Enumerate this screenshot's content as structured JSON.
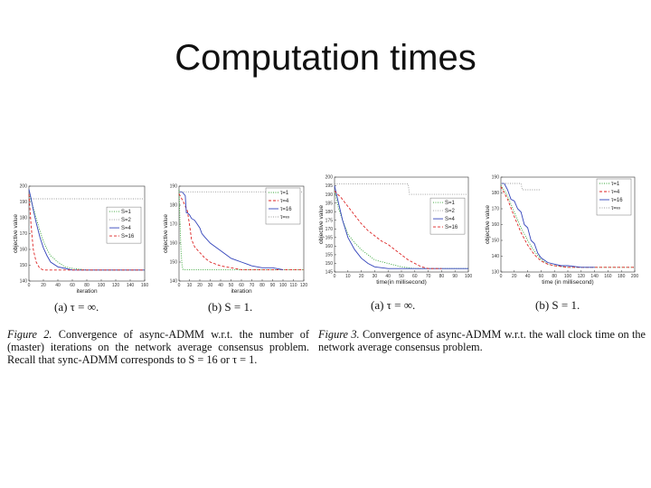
{
  "slide": {
    "title": "Computation times"
  },
  "captions": {
    "fig2": {
      "label": "Figure 2.",
      "text": "Convergence of async-ADMM w.r.t. the number of (master) iterations on the network average consensus problem. Recall that sync-ADMM corresponds to S = 16 or τ = 1."
    },
    "fig3": {
      "label": "Figure 3.",
      "text": "Convergence of async-ADMM w.r.t. the wall clock time on the network average consensus problem."
    }
  },
  "sublabels": [
    "(a) τ = ∞.",
    "(b) S = 1.",
    "(a) τ = ∞.",
    "(b) S = 1."
  ],
  "chart_data": [
    {
      "type": "line",
      "xlabel": "iteration",
      "ylabel": "objective value",
      "xlim": [
        0,
        160
      ],
      "ylim": [
        140,
        200
      ],
      "xticks": [
        0,
        20,
        40,
        60,
        80,
        100,
        120,
        140,
        160
      ],
      "yticks": [
        140,
        150,
        160,
        170,
        180,
        190,
        200
      ],
      "legend": "right",
      "grid": false,
      "series": [
        {
          "name": "S=1",
          "color": "#2ca02c",
          "style": "dotted",
          "x": [
            0,
            5,
            10,
            15,
            20,
            25,
            30,
            40,
            50,
            60,
            80,
            160
          ],
          "y": [
            195,
            188,
            180,
            172,
            165,
            160,
            156,
            152,
            149,
            148,
            147,
            147
          ]
        },
        {
          "name": "S=2",
          "color": "#999999",
          "style": "dotted",
          "x": [
            0,
            160
          ],
          "y": [
            192,
            192
          ]
        },
        {
          "name": "S=4",
          "color": "#3344bb",
          "style": "solid",
          "x": [
            0,
            3,
            6,
            10,
            15,
            20,
            25,
            30,
            40,
            50,
            60,
            80,
            160
          ],
          "y": [
            198,
            192,
            185,
            177,
            168,
            161,
            156,
            152,
            149,
            148,
            147,
            147,
            147
          ]
        },
        {
          "name": "S=16",
          "color": "#dd2222",
          "style": "dashed",
          "x": [
            0,
            3,
            6,
            10,
            15,
            20,
            30,
            160
          ],
          "y": [
            195,
            175,
            160,
            152,
            148,
            147,
            147,
            147
          ]
        }
      ]
    },
    {
      "type": "line",
      "xlabel": "iteration",
      "ylabel": "objective value",
      "xlim": [
        0,
        120
      ],
      "ylim": [
        140,
        190
      ],
      "xticks": [
        0,
        10,
        20,
        30,
        40,
        50,
        60,
        70,
        80,
        90,
        100,
        110,
        120
      ],
      "yticks": [
        140,
        150,
        160,
        170,
        180,
        190
      ],
      "legend": "top-right",
      "grid": false,
      "series": [
        {
          "name": "τ=1",
          "color": "#2ca02c",
          "style": "dotted",
          "x": [
            0,
            1,
            2,
            3,
            4,
            6,
            120
          ],
          "y": [
            188,
            170,
            155,
            148,
            146,
            146,
            146
          ]
        },
        {
          "name": "τ=4",
          "color": "#dd2222",
          "style": "dashed",
          "x": [
            0,
            4,
            8,
            10,
            12,
            15,
            20,
            25,
            30,
            40,
            50,
            60,
            120
          ],
          "y": [
            186,
            182,
            177,
            170,
            162,
            158,
            155,
            152,
            150,
            148,
            147,
            146,
            146
          ]
        },
        {
          "name": "τ=16",
          "color": "#3344bb",
          "style": "solid",
          "x": [
            0,
            3,
            6,
            7,
            8,
            10,
            12,
            15,
            20,
            22,
            25,
            30,
            35,
            40,
            45,
            50,
            55,
            60,
            65,
            70,
            80,
            90,
            100
          ],
          "y": [
            187,
            187,
            185,
            176,
            176,
            175,
            173,
            172,
            168,
            165,
            163,
            160,
            158,
            156,
            154,
            152,
            151,
            150,
            149,
            148,
            147,
            147,
            146
          ]
        },
        {
          "name": "τ=∞",
          "color": "#999999",
          "style": "dotted",
          "x": [
            0,
            120
          ],
          "y": [
            187,
            187
          ]
        }
      ]
    },
    {
      "type": "line",
      "xlabel": "time(in millisecond)",
      "ylabel": "objective value",
      "xlim": [
        0,
        100
      ],
      "ylim": [
        145,
        200
      ],
      "xticks": [
        0,
        10,
        20,
        30,
        40,
        50,
        60,
        70,
        80,
        90,
        100
      ],
      "yticks": [
        145,
        150,
        155,
        160,
        165,
        170,
        175,
        180,
        185,
        190,
        195,
        200
      ],
      "legend": "right",
      "grid": false,
      "series": [
        {
          "name": "S=1",
          "color": "#2ca02c",
          "style": "dotted",
          "x": [
            0,
            3,
            6,
            10,
            15,
            20,
            25,
            30,
            40,
            50,
            60,
            100
          ],
          "y": [
            192,
            182,
            175,
            167,
            162,
            158,
            155,
            152,
            150,
            148,
            147,
            147
          ]
        },
        {
          "name": "S=2",
          "color": "#999999",
          "style": "dotted",
          "x": [
            0,
            55,
            56,
            100
          ],
          "y": [
            196,
            196,
            190,
            190
          ]
        },
        {
          "name": "S=4",
          "color": "#3344bb",
          "style": "solid",
          "x": [
            0,
            3,
            6,
            10,
            15,
            20,
            25,
            30,
            40,
            50,
            60,
            80,
            100
          ],
          "y": [
            195,
            185,
            175,
            165,
            158,
            153,
            150,
            148,
            147,
            147,
            147,
            147,
            147
          ]
        },
        {
          "name": "S=16",
          "color": "#dd2222",
          "style": "dashed",
          "x": [
            0,
            5,
            10,
            15,
            20,
            25,
            30,
            35,
            40,
            45,
            50,
            55,
            60,
            65,
            70,
            75,
            80
          ],
          "y": [
            192,
            188,
            183,
            178,
            173,
            169,
            166,
            163,
            161,
            158,
            155,
            152,
            150,
            148,
            147,
            147,
            147
          ]
        }
      ]
    },
    {
      "type": "line",
      "xlabel": "time (in millisecond)",
      "ylabel": "objective value",
      "xlim": [
        0,
        200
      ],
      "ylim": [
        130,
        190
      ],
      "xticks": [
        0,
        20,
        40,
        60,
        80,
        100,
        120,
        140,
        160,
        180,
        200
      ],
      "yticks": [
        130,
        140,
        150,
        160,
        170,
        180,
        190
      ],
      "legend": "top-right",
      "grid": false,
      "series": [
        {
          "name": "τ=1",
          "color": "#2ca02c",
          "style": "dotted",
          "x": [
            0,
            10,
            20,
            30,
            40,
            50,
            60,
            70,
            80,
            100,
            200
          ],
          "y": [
            185,
            178,
            168,
            158,
            150,
            143,
            138,
            135,
            134,
            133,
            133
          ]
        },
        {
          "name": "τ=4",
          "color": "#dd2222",
          "style": "dashed",
          "x": [
            0,
            10,
            20,
            30,
            40,
            50,
            60,
            70,
            80,
            100,
            200
          ],
          "y": [
            184,
            176,
            165,
            155,
            147,
            141,
            137,
            135,
            134,
            133,
            133
          ]
        },
        {
          "name": "τ=16",
          "color": "#3344bb",
          "style": "solid",
          "x": [
            0,
            5,
            10,
            15,
            20,
            25,
            30,
            35,
            40,
            45,
            50,
            55,
            60,
            70,
            80,
            90,
            100,
            120,
            140
          ],
          "y": [
            186,
            186,
            182,
            176,
            175,
            170,
            168,
            160,
            158,
            150,
            148,
            142,
            139,
            136,
            135,
            134,
            134,
            133,
            133
          ]
        },
        {
          "name": "τ=∞",
          "color": "#999999",
          "style": "dotted",
          "x": [
            0,
            30,
            32,
            60
          ],
          "y": [
            186,
            186,
            182,
            182
          ]
        }
      ]
    }
  ]
}
